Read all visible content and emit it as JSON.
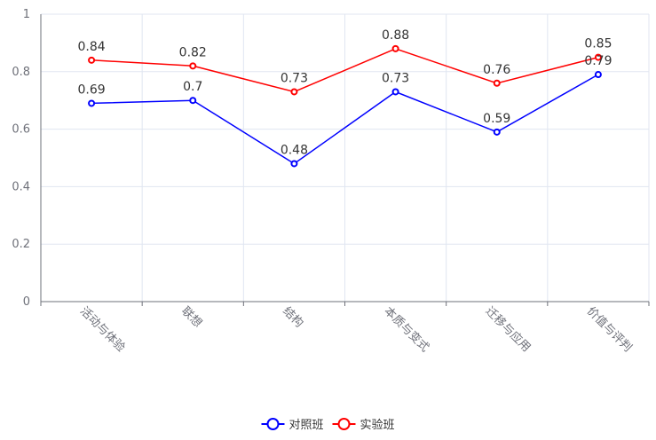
{
  "chart_data": {
    "type": "line",
    "title": "",
    "xlabel": "",
    "ylabel": "",
    "categories": [
      "活动与体验",
      "联想",
      "结构",
      "本质与变式",
      "迁移与应用",
      "价值与评判"
    ],
    "ylim": [
      0,
      1
    ],
    "yticks": [
      0,
      0.2,
      0.4,
      0.6,
      0.8,
      1
    ],
    "grid": true,
    "legend_position": "bottom-center",
    "series": [
      {
        "name": "对照班",
        "color": "#0000ff",
        "values": [
          0.69,
          0.7,
          0.48,
          0.73,
          0.59,
          0.79
        ]
      },
      {
        "name": "实验班",
        "color": "#ff0000",
        "values": [
          0.84,
          0.82,
          0.73,
          0.88,
          0.76,
          0.85
        ]
      }
    ]
  }
}
